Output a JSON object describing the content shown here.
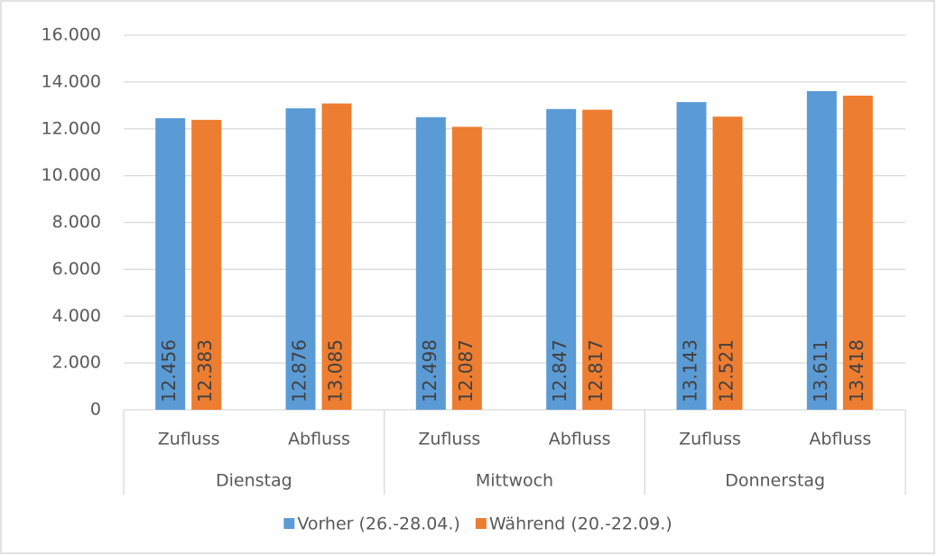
{
  "chart_data": {
    "type": "bar",
    "categories": [
      "Zufluss",
      "Abfluss",
      "Zufluss",
      "Abfluss",
      "Zufluss",
      "Abfluss"
    ],
    "groups": [
      "Dienstag",
      "Mittwoch",
      "Donnerstag"
    ],
    "series": [
      {
        "name": "Vorher (26.-28.04.)",
        "color": "#5b9bd5",
        "values": [
          12456,
          12876,
          12498,
          12847,
          13143,
          13611
        ],
        "value_labels": [
          "12.456",
          "12.876",
          "12.498",
          "12.847",
          "13.143",
          "13.611"
        ]
      },
      {
        "name": "Während (20.-22.09.)",
        "color": "#ed7d31",
        "values": [
          12383,
          13085,
          12087,
          12817,
          12521,
          13418
        ],
        "value_labels": [
          "12.383",
          "13.085",
          "12.087",
          "12.817",
          "12.521",
          "13.418"
        ]
      }
    ],
    "ylim": [
      0,
      16000
    ],
    "yticks": [
      0,
      {
        "value": 2000,
        "label": "2.000"
      },
      {
        "value": 4000,
        "label": "4.000"
      },
      {
        "value": 6000,
        "label": "6.000"
      },
      {
        "value": 8000,
        "label": "8.000"
      },
      {
        "value": 10000,
        "label": "10.000"
      },
      {
        "value": 12000,
        "label": "12.000"
      },
      {
        "value": 14000,
        "label": "14.000"
      },
      {
        "value": 16000,
        "label": "16.000"
      }
    ],
    "grid": true,
    "legend": "bottom"
  }
}
